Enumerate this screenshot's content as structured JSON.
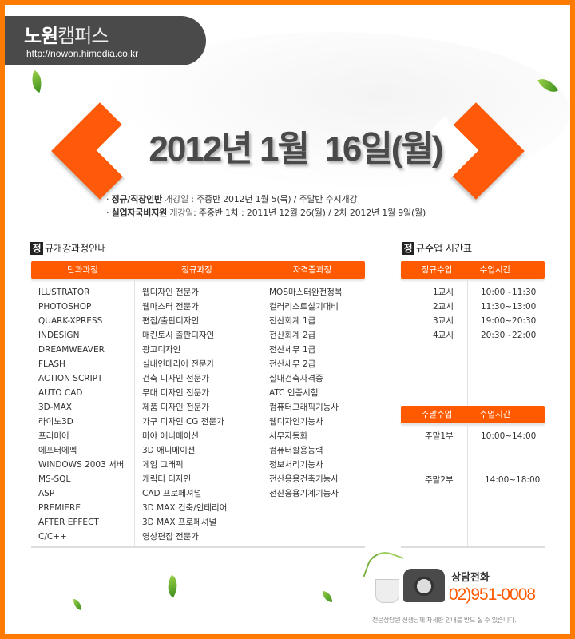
{
  "header": {
    "logo_bold": "노원",
    "logo_light": "캠퍼스",
    "url": "http://nowon.himedia.co.kr"
  },
  "banner": {
    "date_title": "2012년 1월  16일(월)"
  },
  "info": [
    {
      "bullet": "·",
      "bold": "정규/직장인반",
      "label": "개강일",
      "text": ":  주중반 2012년 1월 5(목)  /  주말반 수시개강"
    },
    {
      "bullet": "·",
      "bold": "실업자국비지원",
      "label": "개강일",
      "text": ":  주중반 1차 : 2011년 12월 26(월) / 2차 2012년 1월 9일(월)"
    }
  ],
  "courses": {
    "title_box": "정",
    "title": "규개강과정안내",
    "headers": [
      "단과과정",
      "정규과정",
      "자격증과정"
    ],
    "columns": [
      [
        "ILUSTRATOR",
        "PHOTOSHOP",
        "QUARK-XPRESS",
        "INDESIGN",
        "DREAMWEAVER",
        "FLASH",
        "ACTION SCRIPT",
        "AUTO CAD",
        "3D-MAX",
        "라이노3D",
        "프리미어",
        "에프터에펙",
        "WINDOWS 2003 서버",
        "MS-SQL",
        "ASP",
        "PREMIERE",
        "AFTER EFFECT",
        "C/C++"
      ],
      [
        "웹디자인 전문가",
        "웹마스터 전문가",
        "편집/출판디자인",
        "매킨토시 출판디자인",
        "광고디자인",
        "실내인테리어 전문가",
        "건축 디자인 전문가",
        "무대 디자인 전문가",
        "제품 디자인 전문가",
        "가구 디자인 CG 전문가",
        "마야 애니메이션",
        "3D 애니메이션",
        "게임 그래픽",
        "캐릭터 디자인",
        "CAD 프로페셔널",
        "3D MAX 건축/인테리어",
        "3D MAX 프로페셔널",
        "영상편집 전문가"
      ],
      [
        "MOS마스터완전정복",
        "컬러리스트실기대비",
        "전산회계 1급",
        "전산회계 2급",
        "전산세무 1급",
        "전산세무 2급",
        "실내건축자격증",
        "ATC 인증시험",
        "컴퓨터그래픽기능사",
        "웹디자인기능사",
        "사무자동화",
        "컴퓨터활용능력",
        "정보처리기능사",
        "전산응용건축기능사",
        "전산응용기계기능사"
      ]
    ]
  },
  "schedule": {
    "title_box": "정",
    "title": "규수업 시간표",
    "regular": {
      "headers": [
        "정규수업",
        "수업시간"
      ],
      "rows": [
        [
          "1교시",
          "10:00~11:30"
        ],
        [
          "2교시",
          "11:30~13:00"
        ],
        [
          "3교시",
          "19:00~20:30"
        ],
        [
          "4교시",
          "20:30~22:00"
        ]
      ]
    },
    "weekend": {
      "headers": [
        "주말수업",
        "수업시간"
      ],
      "rows": [
        [
          "주말1부",
          "10:00~14:00"
        ],
        [
          "주말2부",
          "14:00~18:00"
        ]
      ]
    }
  },
  "contact": {
    "label": "상담전화",
    "phone": "02)951-0008",
    "note": "전문상담원 선생님께 자세한 안내를 받으 실 수 있습니다."
  },
  "colors": {
    "accent": "#ff5a00",
    "border": "#ff7a00",
    "header_bg": "#4a4a4a"
  }
}
